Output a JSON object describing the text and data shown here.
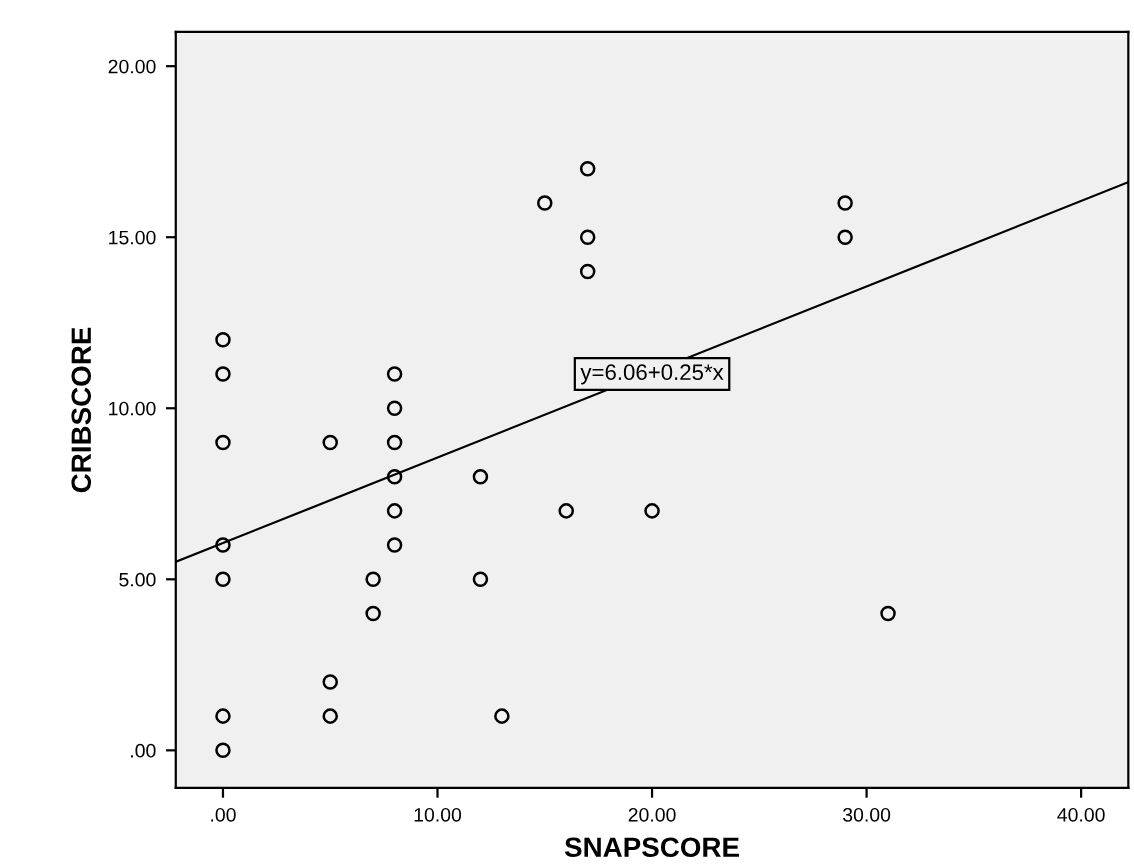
{
  "chart_data": {
    "type": "scatter",
    "xlabel": "SNAPSCORE",
    "ylabel": "CRIBSCORE",
    "series": [
      {
        "color": "#000000",
        "marker": "circle",
        "x": [
          0,
          0,
          0,
          0,
          0,
          0,
          0,
          5,
          5,
          5,
          7,
          7,
          8,
          8,
          8,
          8,
          8,
          8,
          12,
          12,
          13,
          15,
          16,
          17,
          17,
          17,
          20,
          29,
          29,
          31
        ],
        "values": [
          12,
          11,
          9,
          6,
          5,
          1,
          0,
          9,
          2,
          1,
          5,
          4,
          11,
          10,
          9,
          8,
          7,
          6,
          8,
          5,
          1,
          16,
          7,
          17,
          15,
          14,
          7,
          16,
          15,
          4
        ]
      },
      {
        "type": "line",
        "color": "#000000",
        "marker": "none",
        "x": [
          -2.2,
          42.2
        ],
        "values": [
          5.51,
          16.61
        ]
      }
    ],
    "annotations": [
      {
        "text": "y=6.06+0.25*x",
        "x": 20,
        "y": 11
      }
    ],
    "xlim": [
      -2.2,
      42.2
    ],
    "xticks": [
      {
        "value": 0,
        "label": ".00"
      },
      {
        "value": 10,
        "label": "10.00"
      },
      {
        "value": 20,
        "label": "20.00"
      },
      {
        "value": 30,
        "label": "30.00"
      },
      {
        "value": 40,
        "label": "40.00"
      }
    ],
    "ylim": [
      -1.1,
      21
    ],
    "yticks": [
      {
        "value": 0,
        "label": ".00"
      },
      {
        "value": 5,
        "label": "5.00"
      },
      {
        "value": 10,
        "label": "10.00"
      },
      {
        "value": 15,
        "label": "15.00"
      },
      {
        "value": 20,
        "label": "20.00"
      }
    ],
    "grid": false,
    "legend": false
  }
}
